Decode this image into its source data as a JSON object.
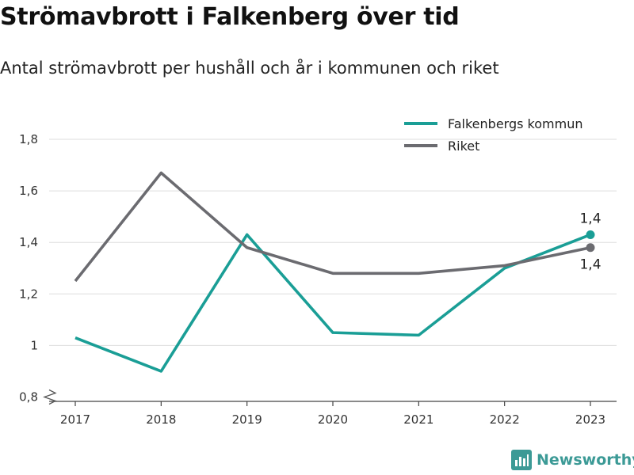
{
  "title": "Strömavbrott i Falkenberg över tid",
  "subtitle": "Antal strömavbrott per hushåll och år i kommunen och riket",
  "brand": {
    "name": "Newsworthy",
    "icon": "newsworthy-logo-icon",
    "color": "#3c9a96"
  },
  "chart_data": {
    "type": "line",
    "x": [
      "2017",
      "2018",
      "2019",
      "2020",
      "2021",
      "2022",
      "2023"
    ],
    "ylim": [
      0.78,
      1.88
    ],
    "yticks": [
      0.8,
      1,
      1.2,
      1.4,
      1.6,
      1.8
    ],
    "ytick_labels": [
      "0,8",
      "1",
      "1,2",
      "1,4",
      "1,6",
      "1,8"
    ],
    "y_axis_break": true,
    "grid": true,
    "legend_position": "top-right",
    "series": [
      {
        "name": "Falkenbergs kommun",
        "color": "#1a9e96",
        "values": [
          1.03,
          0.9,
          1.43,
          1.05,
          1.04,
          1.3,
          1.43
        ],
        "end_label": "1,4"
      },
      {
        "name": "Riket",
        "color": "#6b6b70",
        "values": [
          1.25,
          1.67,
          1.38,
          1.28,
          1.28,
          1.31,
          1.38
        ],
        "end_label": "1,4"
      }
    ]
  }
}
